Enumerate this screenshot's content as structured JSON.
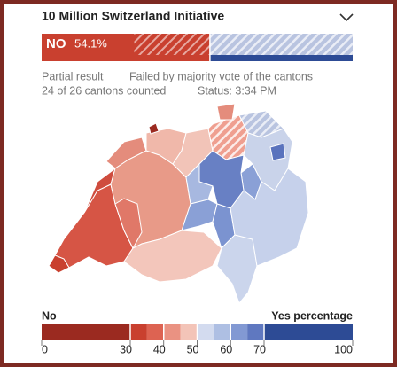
{
  "header": {
    "title": "10 Million Switzerland Initiative"
  },
  "result": {
    "label": "NO",
    "percent": {
      "value": 54.1,
      "label": "54.1%"
    }
  },
  "status": {
    "line1": [
      "Partial result",
      "Failed by majority vote of the cantons"
    ],
    "line2": [
      "24 of 26 cantons counted",
      "Status: 3:34 PM"
    ]
  },
  "legend": {
    "left": "No",
    "right": "Yes percentage",
    "ticks": [
      0,
      30,
      40,
      50,
      60,
      70,
      100
    ],
    "colors": [
      "#9b2a20",
      "#c9402f",
      "#dd6352",
      "#ea9282",
      "#f3c4b8",
      "#d3dbef",
      "#aebfe3",
      "#8299d3",
      "#5f78c0",
      "#2d4b95"
    ]
  }
}
